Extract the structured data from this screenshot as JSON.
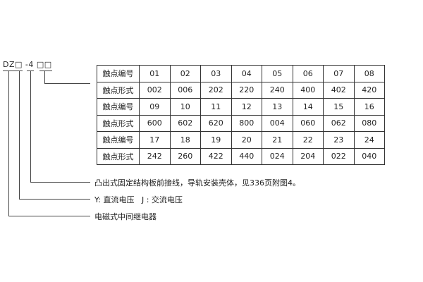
{
  "model_code": "DZ□ -4 □□",
  "table": {
    "rows": [
      [
        "触点编号",
        "01",
        "02",
        "03",
        "04",
        "05",
        "06",
        "07",
        "08"
      ],
      [
        "触点形式",
        "002",
        "006",
        "202",
        "220",
        "240",
        "400",
        "402",
        "420"
      ],
      [
        "触点编号",
        "09",
        "10",
        "11",
        "12",
        "13",
        "14",
        "15",
        "16"
      ],
      [
        "触点形式",
        "600",
        "602",
        "620",
        "800",
        "004",
        "060",
        "062",
        "080"
      ],
      [
        "触点编号",
        "17",
        "18",
        "19",
        "20",
        "21",
        "22",
        "23",
        "24"
      ],
      [
        "触点形式",
        "242",
        "260",
        "422",
        "440",
        "024",
        "204",
        "022",
        "040"
      ]
    ]
  },
  "descriptions": [
    "凸出式固定结构板前接线，导轨安装壳体，见336页附图4。",
    "Y: 直流电压   J : 交流电压",
    "电磁式中间继电器"
  ]
}
